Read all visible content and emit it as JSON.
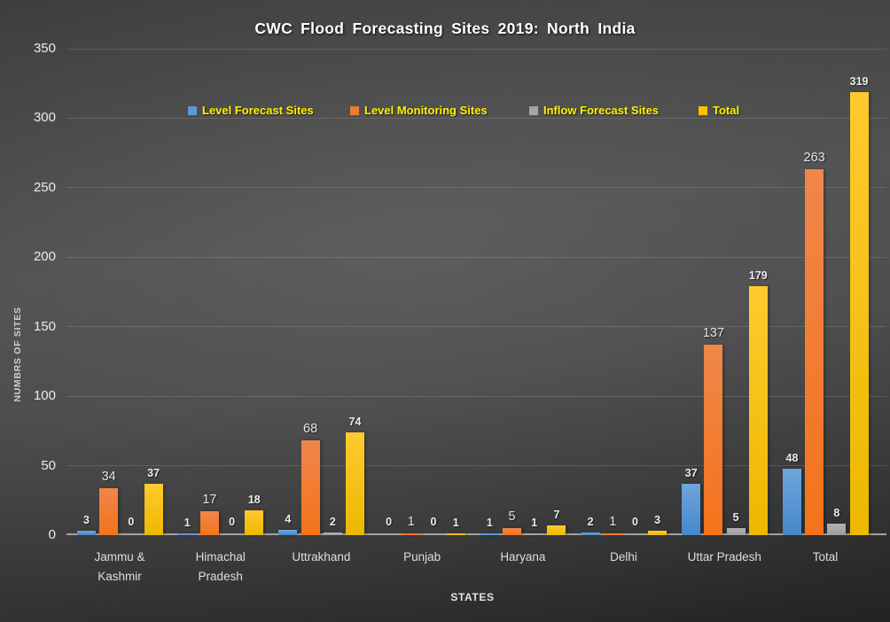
{
  "chart_data": {
    "type": "bar",
    "title": "CWC Flood Forecasting Sites 2019: North India",
    "xlabel": "STATES",
    "ylabel": "NUMBRS OF SITES",
    "ylim": [
      0,
      350
    ],
    "yticks": [
      0,
      50,
      100,
      150,
      200,
      250,
      300,
      350
    ],
    "grid": true,
    "legend_position": "top",
    "legend_text_color": "#fff200",
    "background": "dark-gray-gradient",
    "categories": [
      "Jammu &\nKashmir",
      "Himachal\nPradesh",
      "Uttrakhand",
      "Punjab",
      "Haryana",
      "Delhi",
      "Uttar Pradesh",
      "Total"
    ],
    "series": [
      {
        "name": "Level Forecast Sites",
        "color": "#5B9BD5",
        "values": [
          3,
          1,
          4,
          0,
          1,
          2,
          37,
          48
        ]
      },
      {
        "name": "Level Monitoring Sites",
        "color": "#ED7D31",
        "values": [
          34,
          17,
          68,
          1,
          5,
          1,
          137,
          263
        ]
      },
      {
        "name": "Inflow Forecast Sites",
        "color": "#A5A5A5",
        "values": [
          0,
          0,
          2,
          0,
          1,
          0,
          5,
          8
        ]
      },
      {
        "name": "Total",
        "color": "#FFC000",
        "values": [
          37,
          18,
          74,
          1,
          7,
          3,
          179,
          319
        ]
      }
    ]
  }
}
